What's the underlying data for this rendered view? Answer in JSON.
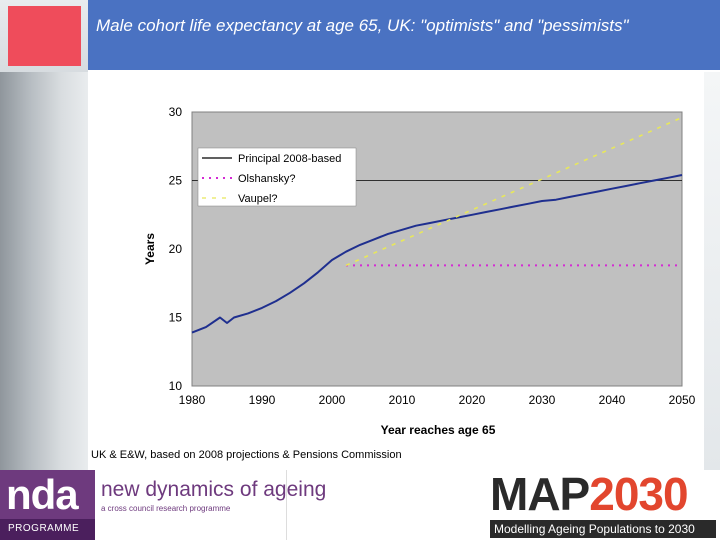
{
  "slide": {
    "title": "Male cohort life expectancy at age 65, UK: \"optimists\" and \"pessimists\"",
    "source_note": "UK & E&W, based on 2008 projections & Pensions Commission"
  },
  "footer": {
    "nda_logo": "nda",
    "nda_programme": "PROGRAMME",
    "nda_brand": "new dynamics of ageing",
    "nda_sub": "a cross council research programme",
    "map_part1": "MAP",
    "map_part2": "2030",
    "map_tagline": "Modelling Ageing Populations to 2030"
  },
  "colors": {
    "title_bar": "#4a72c2",
    "principal": "#1f2f8f",
    "olshansky": "#d42ad4",
    "vaupel": "#e8e85a",
    "plot_bg": "#c0c0c0"
  },
  "chart_data": {
    "type": "line",
    "title": "",
    "xlabel": "Year reaches age 65",
    "ylabel": "Years",
    "xlim": [
      1980,
      2050
    ],
    "ylim": [
      10,
      30
    ],
    "xticks": [
      1980,
      1990,
      2000,
      2010,
      2020,
      2030,
      2040,
      2050
    ],
    "yticks": [
      10,
      15,
      20,
      25,
      30
    ],
    "grid": "horizontal at 25",
    "legend_position": "top-left",
    "series": [
      {
        "name": "Principal 2008-based",
        "style": "solid",
        "x": [
          1980,
          1982,
          1984,
          1985,
          1986,
          1988,
          1990,
          1992,
          1994,
          1996,
          1998,
          2000,
          2002,
          2004,
          2006,
          2008,
          2010,
          2012,
          2014,
          2016,
          2018,
          2020,
          2022,
          2024,
          2026,
          2028,
          2030,
          2032,
          2034,
          2036,
          2038,
          2040,
          2042,
          2044,
          2046,
          2048,
          2050
        ],
        "y": [
          13.9,
          14.3,
          15.0,
          14.6,
          15.0,
          15.3,
          15.7,
          16.2,
          16.8,
          17.5,
          18.3,
          19.2,
          19.8,
          20.3,
          20.7,
          21.1,
          21.4,
          21.7,
          21.9,
          22.1,
          22.3,
          22.5,
          22.7,
          22.9,
          23.1,
          23.3,
          23.5,
          23.6,
          23.8,
          24.0,
          24.2,
          24.4,
          24.6,
          24.8,
          25.0,
          25.2,
          25.4
        ]
      },
      {
        "name": "Olshansky?",
        "style": "dotted",
        "x": [
          2002,
          2050
        ],
        "y": [
          18.8,
          18.8
        ]
      },
      {
        "name": "Vaupel?",
        "style": "dashed",
        "x": [
          2002,
          2050
        ],
        "y": [
          18.8,
          29.6
        ]
      }
    ]
  }
}
